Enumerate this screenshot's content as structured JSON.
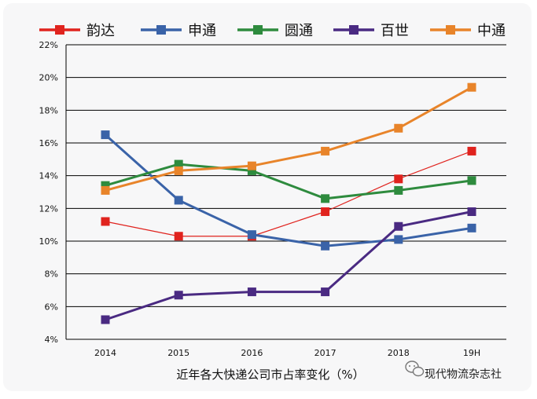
{
  "chart_data": {
    "type": "line",
    "title": "",
    "xlabel": "近年各大快递公司市占率变化（%）",
    "ylabel": "",
    "categories": [
      "2014",
      "2015",
      "2016",
      "2017",
      "2018",
      "19H"
    ],
    "y_ticks": [
      "4%",
      "6%",
      "8%",
      "10%",
      "12%",
      "14%",
      "16%",
      "18%",
      "20%",
      "22%"
    ],
    "ylim": [
      4,
      22
    ],
    "grid": "horizontal",
    "legend_position": "top",
    "series": [
      {
        "name": "韵达",
        "color": "#e0231e",
        "values": [
          11.2,
          10.3,
          10.3,
          11.8,
          13.8,
          15.5
        ]
      },
      {
        "name": "申通",
        "color": "#3a63a8",
        "values": [
          16.5,
          12.5,
          10.4,
          9.7,
          10.1,
          10.8
        ]
      },
      {
        "name": "圆通",
        "color": "#2e8b3e",
        "values": [
          13.4,
          14.7,
          14.3,
          12.6,
          13.1,
          13.7
        ]
      },
      {
        "name": "百世",
        "color": "#4a2a82",
        "values": [
          5.2,
          6.7,
          6.9,
          6.9,
          10.9,
          11.8
        ]
      },
      {
        "name": "中通",
        "color": "#e8842a",
        "values": [
          13.1,
          14.3,
          14.6,
          15.5,
          16.9,
          19.4
        ]
      }
    ]
  },
  "watermark": {
    "icon": "wechat-icon",
    "text": "现代物流杂志社"
  }
}
